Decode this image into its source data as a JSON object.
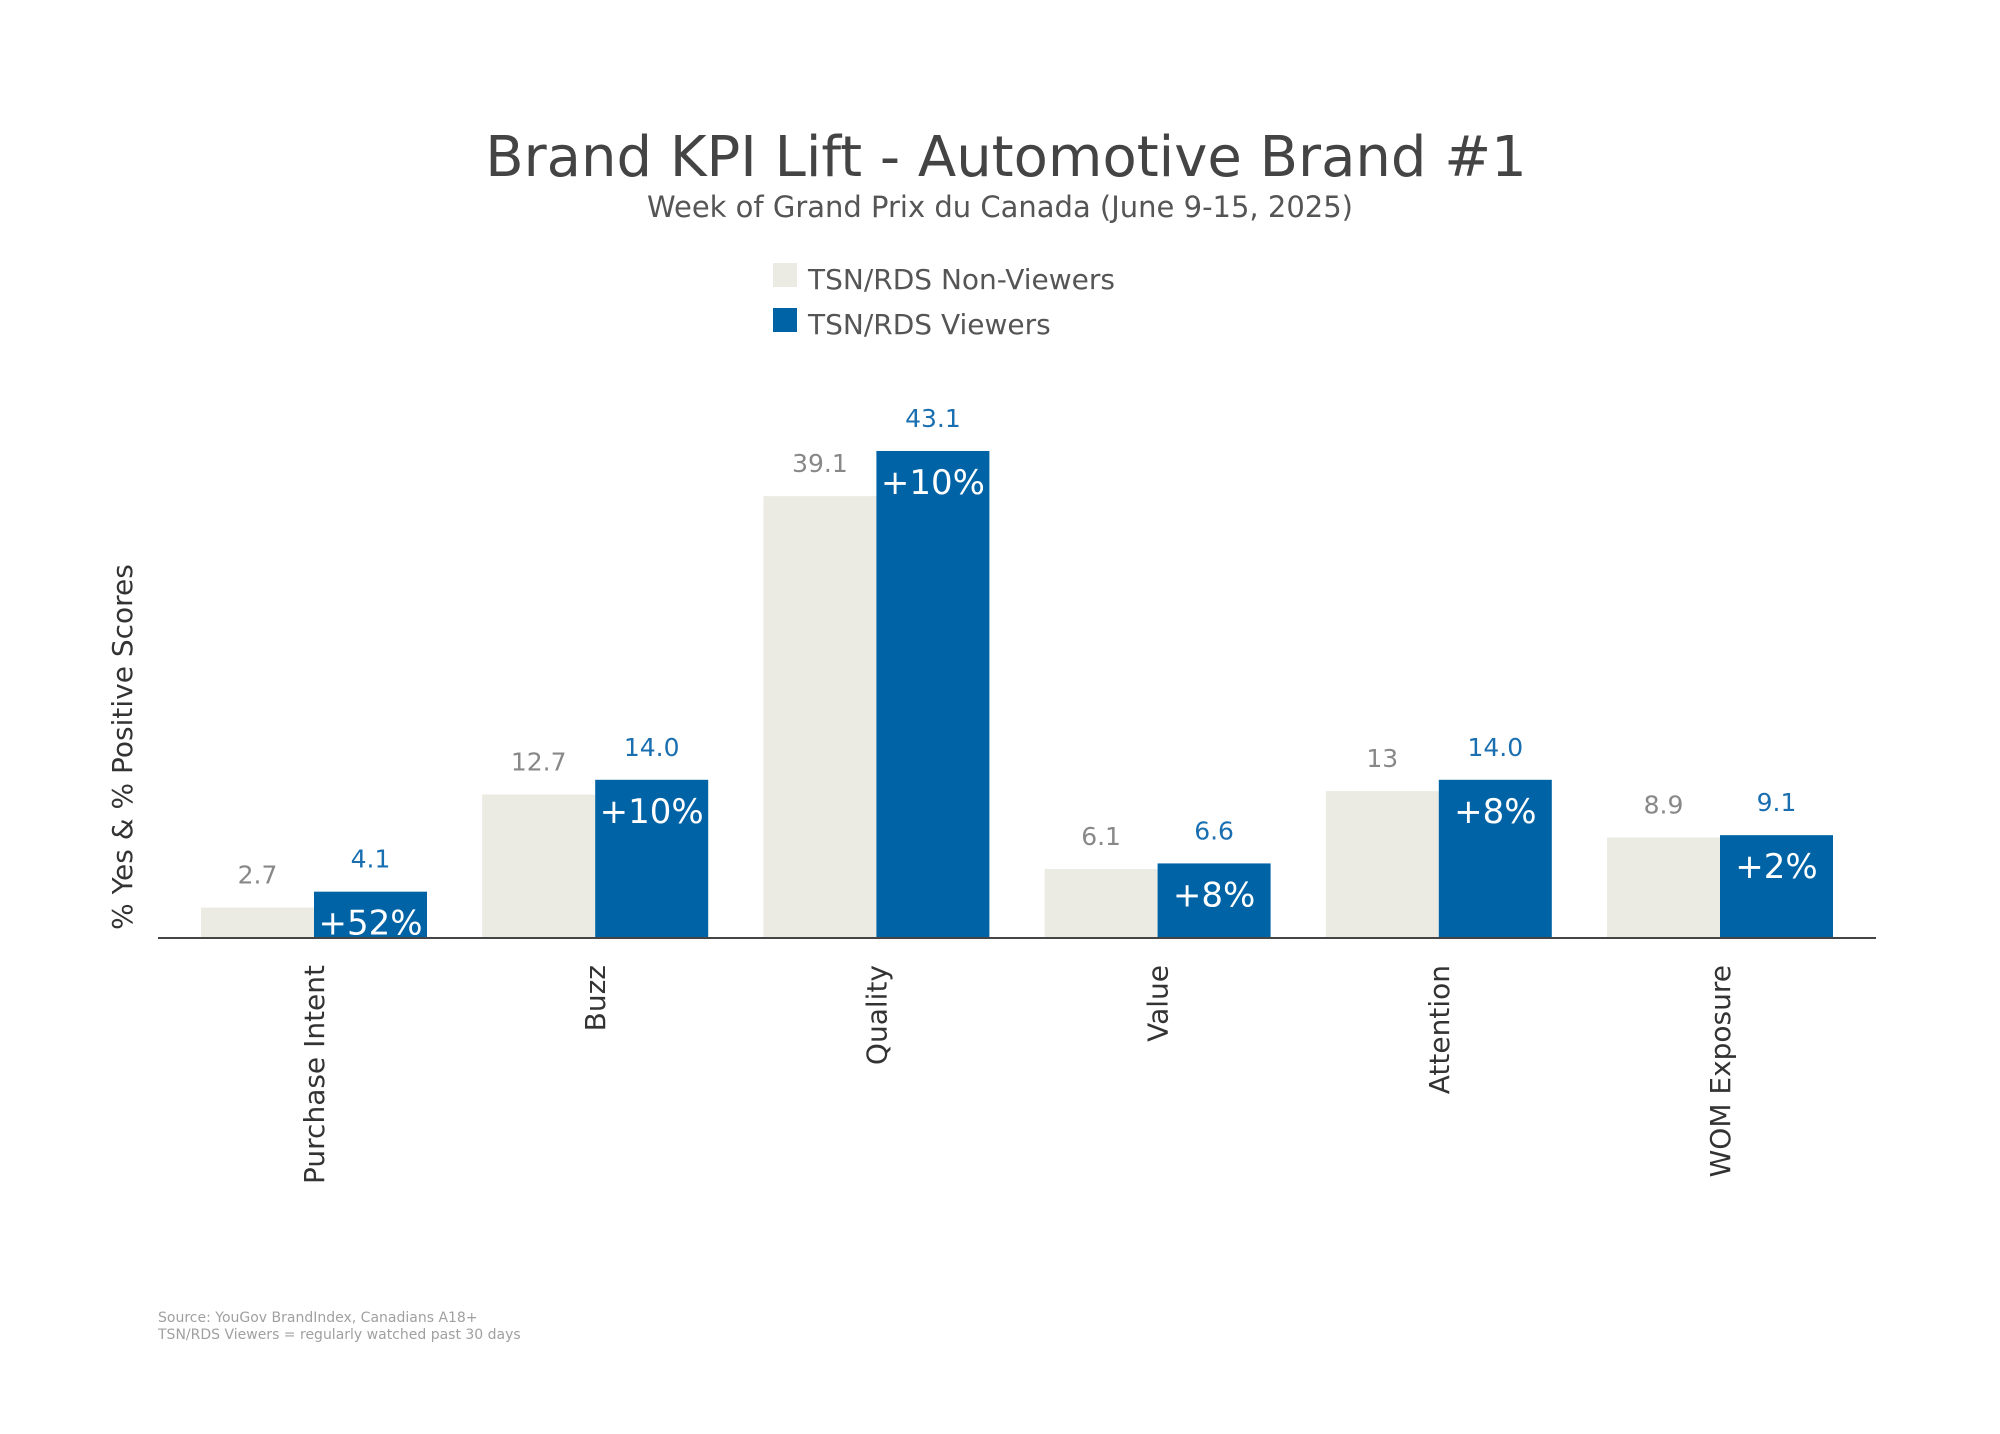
{
  "chart_data": {
    "type": "bar",
    "title": "Brand KPI Lift - Automotive Brand #1",
    "subtitle": "Week of Grand Prix du Canada (June 9-15, 2025)",
    "xlabel": "",
    "ylabel": "% Yes & % Positive Scores",
    "ylim": [
      0,
      45
    ],
    "grid": false,
    "legend_placement": "top-center",
    "categories": [
      "Purchase Intent",
      "Buzz",
      "Quality",
      "Value",
      "Attention",
      "WOM Exposure"
    ],
    "series": [
      {
        "name": "TSN/RDS Non-Viewers",
        "color": "#ebebe4",
        "values": [
          2.7,
          12.7,
          39.1,
          6.1,
          13,
          8.9
        ],
        "labels": [
          "2.7",
          "12.7",
          "39.1",
          "6.1",
          "13",
          "8.9"
        ]
      },
      {
        "name": "TSN/RDS Viewers",
        "color": "#0063a6",
        "values": [
          4.1,
          14.0,
          43.1,
          6.6,
          14.0,
          9.1
        ],
        "labels": [
          "4.1",
          "14.0",
          "43.1",
          "6.6",
          "14.0",
          "9.1"
        ]
      }
    ],
    "lift_labels": [
      "+52%",
      "+10%",
      "+10%",
      "+8%",
      "+8%",
      "+2%"
    ]
  },
  "footnotes": [
    "Source: YouGov BrandIndex, Canadians A18+",
    "TSN/RDS Viewers = regularly watched past 30 days"
  ]
}
